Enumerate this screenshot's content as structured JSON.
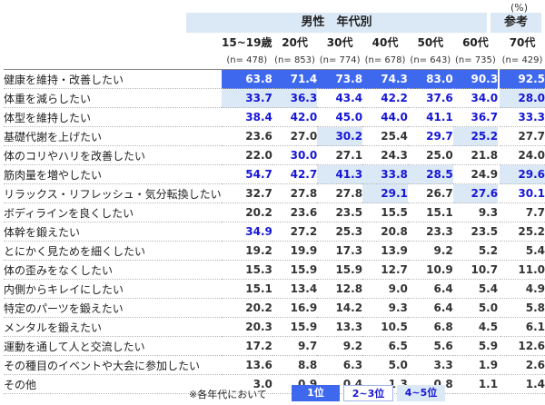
{
  "unit": "(%)",
  "group_header": "男性　年代別",
  "ref_header": "参考",
  "columns": [
    "15~19歳",
    "20代",
    "30代",
    "40代",
    "50代",
    "60代",
    "70代"
  ],
  "n_labels": [
    "(n= 478)",
    "(n= 853)",
    "(n= 774)",
    "(n= 678)",
    "(n= 643)",
    "(n= 735)",
    "(n= 429)"
  ],
  "legend": {
    "note": "※各年代において",
    "rank1": "1位",
    "rank2_3": "2~3位",
    "rank4_5": "4~5位"
  },
  "colors": {
    "rank1": "#3e68ed",
    "rank2_3": "#1616d6",
    "rank4_5": "#dbe9f7"
  },
  "chart_data": {
    "type": "table",
    "row_labels": [
      "健康を維持・改善したい",
      "体重を減らしたい",
      "体型を維持したい",
      "基礎代謝を上げたい",
      "体のコリやハリを改善したい",
      "筋肉量を増やしたい",
      "リラックス・リフレッシュ・気分転換したい",
      "ボディラインを良くしたい",
      "体幹を鍛えたい",
      "とにかく見ためを細くしたい",
      "体の歪みをなくしたい",
      "内側からキレイにしたい",
      "特定のパーツを鍛えたい",
      "メンタルを鍛えたい",
      "運動を通して人と交流したい",
      "その種目のイベントや大会に参加したい",
      "その他"
    ],
    "columns": [
      "15~19歳",
      "20代",
      "30代",
      "40代",
      "50代",
      "60代",
      "70代"
    ],
    "values": [
      [
        "63.8",
        "71.4",
        "73.8",
        "74.3",
        "83.0",
        "90.3",
        "92.5"
      ],
      [
        "33.7",
        "36.3",
        "43.4",
        "42.2",
        "37.6",
        "34.0",
        "28.0"
      ],
      [
        "38.4",
        "42.0",
        "45.0",
        "44.0",
        "41.1",
        "36.7",
        "33.3"
      ],
      [
        "23.6",
        "27.0",
        "30.2",
        "25.4",
        "29.7",
        "25.2",
        "27.7"
      ],
      [
        "22.0",
        "30.0",
        "27.1",
        "24.3",
        "25.0",
        "21.8",
        "24.0"
      ],
      [
        "54.7",
        "42.7",
        "41.3",
        "33.8",
        "28.5",
        "24.9",
        "29.6"
      ],
      [
        "32.7",
        "27.8",
        "27.8",
        "29.1",
        "26.7",
        "27.6",
        "30.1"
      ],
      [
        "20.2",
        "23.6",
        "23.5",
        "15.5",
        "15.1",
        "9.3",
        "7.7"
      ],
      [
        "34.9",
        "27.2",
        "25.3",
        "20.8",
        "23.3",
        "23.5",
        "25.2"
      ],
      [
        "19.2",
        "19.9",
        "17.3",
        "13.9",
        "9.2",
        "5.2",
        "5.4"
      ],
      [
        "15.3",
        "15.9",
        "15.9",
        "12.7",
        "10.9",
        "10.7",
        "11.0"
      ],
      [
        "15.1",
        "13.4",
        "12.8",
        "9.0",
        "6.4",
        "5.4",
        "4.9"
      ],
      [
        "20.2",
        "16.9",
        "14.2",
        "9.3",
        "6.4",
        "5.0",
        "5.8"
      ],
      [
        "20.3",
        "15.9",
        "13.3",
        "10.5",
        "6.8",
        "4.5",
        "6.1"
      ],
      [
        "17.2",
        "9.7",
        "9.2",
        "6.5",
        "5.6",
        "5.9",
        "12.6"
      ],
      [
        "13.6",
        "8.8",
        "6.3",
        "5.0",
        "3.3",
        "1.9",
        "2.6"
      ],
      [
        "3.0",
        "0.9",
        "0.4",
        "1.3",
        "0.8",
        "1.1",
        "1.4"
      ]
    ],
    "ranks": [
      [
        1,
        1,
        1,
        1,
        1,
        1,
        1
      ],
      [
        4,
        4,
        2,
        3,
        3,
        3,
        4
      ],
      [
        2,
        3,
        2,
        2,
        2,
        2,
        2
      ],
      [
        0,
        0,
        4,
        0,
        2,
        5,
        0
      ],
      [
        0,
        3,
        0,
        0,
        0,
        0,
        0
      ],
      [
        2,
        2,
        4,
        4,
        4,
        0,
        4
      ],
      [
        0,
        0,
        0,
        4,
        0,
        4,
        3
      ],
      [
        0,
        0,
        0,
        0,
        0,
        0,
        0
      ],
      [
        3,
        0,
        0,
        0,
        0,
        0,
        0
      ],
      [
        0,
        0,
        0,
        0,
        0,
        0,
        0
      ],
      [
        0,
        0,
        0,
        0,
        0,
        0,
        0
      ],
      [
        0,
        0,
        0,
        0,
        0,
        0,
        0
      ],
      [
        0,
        0,
        0,
        0,
        0,
        0,
        0
      ],
      [
        0,
        0,
        0,
        0,
        0,
        0,
        0
      ],
      [
        0,
        0,
        0,
        0,
        0,
        0,
        0
      ],
      [
        0,
        0,
        0,
        0,
        0,
        0,
        0
      ],
      [
        0,
        0,
        0,
        0,
        0,
        0,
        0
      ]
    ]
  }
}
